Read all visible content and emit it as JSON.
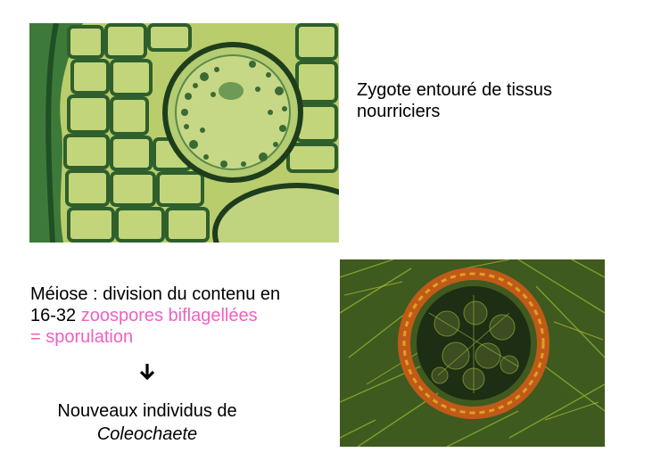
{
  "zygote": {
    "caption_line1": "Zygote entouré de tissus",
    "caption_line2": "nourriciers",
    "image_icon": "micrograph-zygote-icon"
  },
  "meiosis": {
    "line1": "Méiose : division du contenu en",
    "line2_prefix": "16-32 ",
    "line2_highlight": "zoospores biflagellées",
    "line3_highlight": "= sporulation",
    "highlight_color": "#f060c0",
    "image_icon": "micrograph-sporulation-icon"
  },
  "arrow_icon": "arrow-down-icon",
  "result": {
    "line1": "Nouveaux individus de",
    "line2": "Coleochaete"
  }
}
